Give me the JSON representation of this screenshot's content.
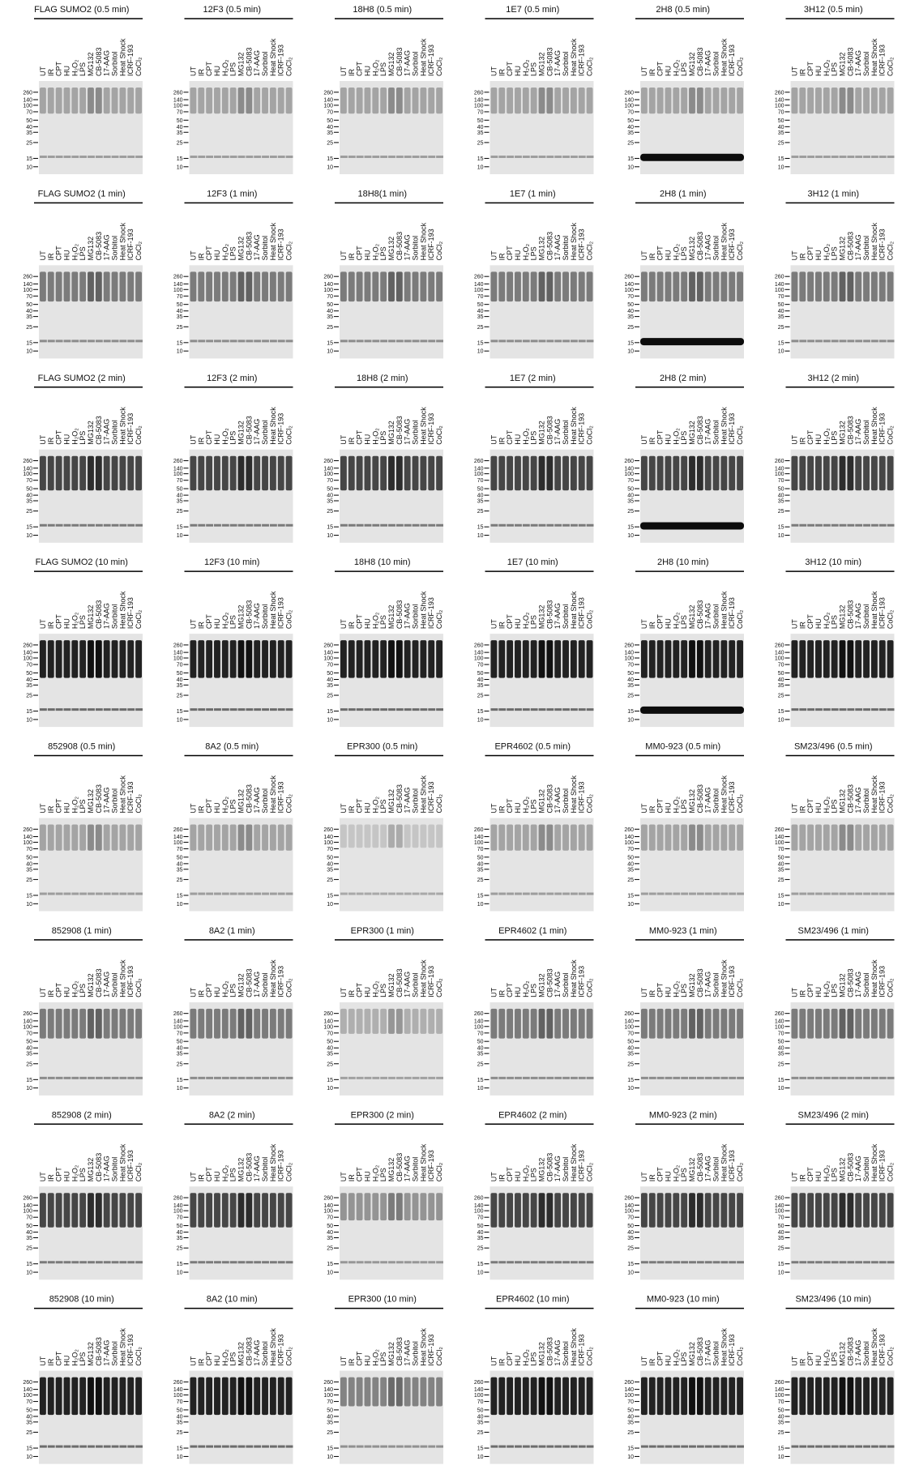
{
  "lanes": [
    "UT",
    "IR",
    "CPT",
    "HU",
    "H₂O₂",
    "LPS",
    "MG132",
    "CB-5083",
    "17-AAG",
    "Sorbitol",
    "Heat Shock",
    "ICRF-193",
    "CoCl₂"
  ],
  "markers": [
    260,
    140,
    100,
    70,
    50,
    40,
    35,
    25,
    15,
    10
  ],
  "panels": [
    {
      "title": "FLAG SUMO2 (0.5 min)"
    },
    {
      "title": "12F3 (0.5 min)"
    },
    {
      "title": "18H8 (0.5 min)"
    },
    {
      "title": "1E7 (0.5 min)"
    },
    {
      "title": "2H8 (0.5 min)"
    },
    {
      "title": "3H12 (0.5 min)"
    },
    {
      "title": "FLAG SUMO2 (1 min)"
    },
    {
      "title": "12F3 (1 min)"
    },
    {
      "title": "18H8(1 min)"
    },
    {
      "title": "1E7 (1 min)"
    },
    {
      "title": "2H8 (1 min)"
    },
    {
      "title": "3H12 (1 min)"
    },
    {
      "title": "FLAG SUMO2 (2 min)"
    },
    {
      "title": "12F3 (2 min)"
    },
    {
      "title": "18H8 (2 min)"
    },
    {
      "title": "1E7 (2 min)"
    },
    {
      "title": "2H8 (2 min)"
    },
    {
      "title": "3H12 (2 min)"
    },
    {
      "title": "FLAG SUMO2 (10 min)"
    },
    {
      "title": "12F3 (10 min)"
    },
    {
      "title": "18H8 (10 min)"
    },
    {
      "title": "1E7 (10 min)"
    },
    {
      "title": "2H8 (10 min)"
    },
    {
      "title": "3H12 (10 min)"
    },
    {
      "title": "852908 (0.5 min)"
    },
    {
      "title": "8A2 (0.5 min)"
    },
    {
      "title": "EPR300 (0.5 min)"
    },
    {
      "title": "EPR4602 (0.5 min)"
    },
    {
      "title": "MM0-923 (0.5 min)"
    },
    {
      "title": "SM23/496 (0.5 min)"
    },
    {
      "title": "852908 (1 min)"
    },
    {
      "title": "8A2 (1 min)"
    },
    {
      "title": "EPR300 (1 min)"
    },
    {
      "title": "EPR4602 (1 min)"
    },
    {
      "title": "MM0-923 (1 min)"
    },
    {
      "title": "SM23/496 (1 min)"
    },
    {
      "title": "852908 (2 min)"
    },
    {
      "title": "8A2 (2 min)"
    },
    {
      "title": "EPR300 (2 min)"
    },
    {
      "title": "EPR4602 (2 min)"
    },
    {
      "title": "MM0-923 (2 min)"
    },
    {
      "title": "SM23/496 (2 min)"
    },
    {
      "title": "852908 (10 min)"
    },
    {
      "title": "8A2 (10 min)"
    },
    {
      "title": "EPR300 (10 min)"
    },
    {
      "title": "EPR4602 (10 min)"
    },
    {
      "title": "MM0-923 (10 min)"
    },
    {
      "title": "SM23/496 (10 min)"
    }
  ]
}
